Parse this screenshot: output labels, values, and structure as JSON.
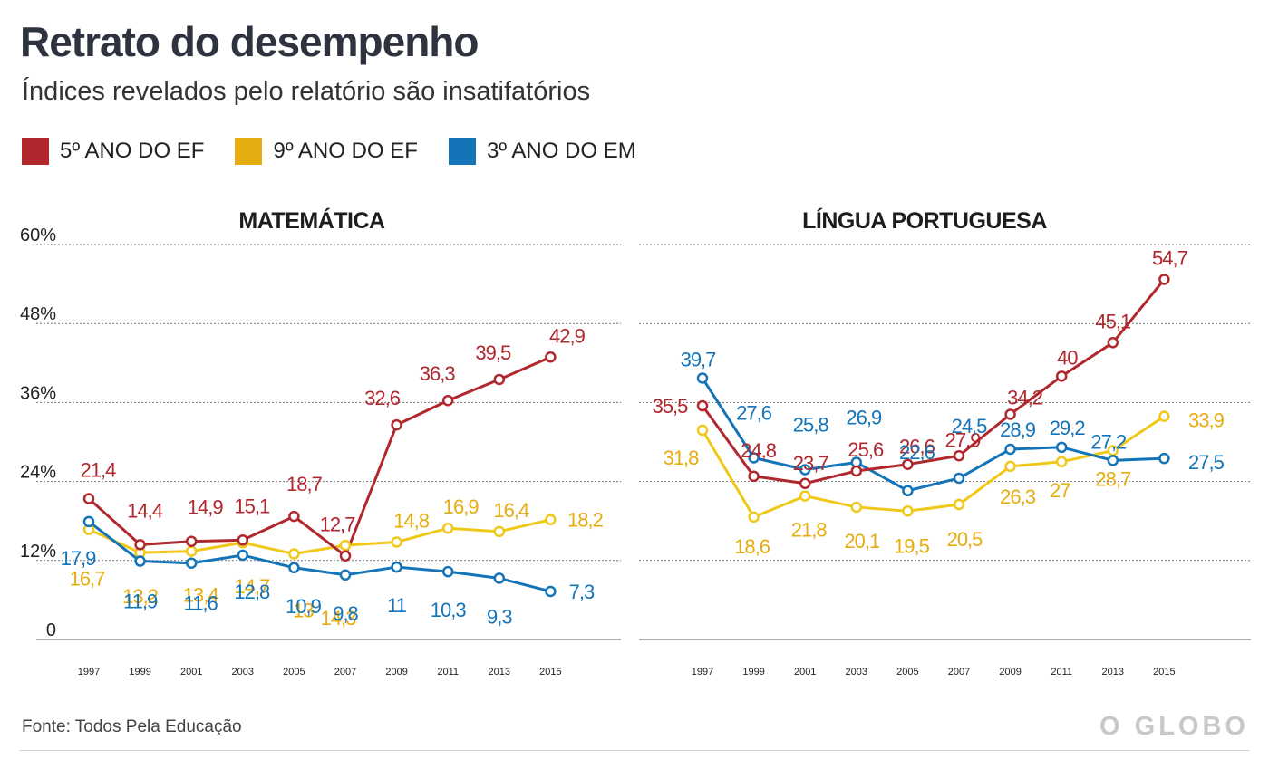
{
  "header": {
    "title": "Retrato do desempenho",
    "subtitle": "Índices revelados pelo relatório são insatifatórios"
  },
  "legend": [
    {
      "label": "5º ANO DO EF",
      "color": "#b0282e"
    },
    {
      "label": "9º ANO DO EF",
      "color": "#e6ad10"
    },
    {
      "label": "3º ANO DO EM",
      "color": "#1474b8"
    }
  ],
  "footer": {
    "source": "Fonte: Todos Pela Educação",
    "brand": "O GLOBO"
  },
  "colors": {
    "5ef": "#b0282e",
    "9ef_line": "#f0c81a",
    "9ef_label": "#e6ad10",
    "3em": "#1474b8",
    "grid": "#777777"
  },
  "chart_data": [
    {
      "type": "line",
      "title": "MATEMÁTICA",
      "x": [
        "1997",
        "1999",
        "2001",
        "2003",
        "2005",
        "2007",
        "2009",
        "2011",
        "2013",
        "2015"
      ],
      "ylim": [
        0,
        60
      ],
      "yticks": [
        "0",
        "12%",
        "24%",
        "36%",
        "48%",
        "60%"
      ],
      "grid": true,
      "series": [
        {
          "name": "5º ANO DO EF",
          "values": [
            21.4,
            14.4,
            14.9,
            15.1,
            18.7,
            12.7,
            32.6,
            36.3,
            39.5,
            42.9
          ],
          "labels": [
            "21,4",
            "14,4",
            "14,9",
            "15,1",
            "18,7",
            "12,7",
            "32,6",
            "36,3",
            "39,5",
            "42,9"
          ]
        },
        {
          "name": "9º ANO DO EF",
          "values": [
            16.7,
            13.2,
            13.4,
            14.7,
            13.0,
            14.3,
            14.8,
            16.9,
            16.4,
            18.2
          ],
          "labels": [
            "16,7",
            "13,2",
            "13,4",
            "14,7",
            "13",
            "14,3",
            "14,8",
            "16,9",
            "16,4",
            "18,2"
          ]
        },
        {
          "name": "3º ANO DO EM",
          "values": [
            17.9,
            11.9,
            11.6,
            12.8,
            10.9,
            9.8,
            11.0,
            10.3,
            9.3,
            7.3
          ],
          "labels": [
            "17,9",
            "11,9",
            "11,6",
            "12,8",
            "10,9",
            "9,8",
            "11",
            "10,3",
            "9,3",
            "7,3"
          ]
        }
      ]
    },
    {
      "type": "line",
      "title": "LÍNGUA PORTUGUESA",
      "x": [
        "1997",
        "1999",
        "2001",
        "2003",
        "2005",
        "2007",
        "2009",
        "2011",
        "2013",
        "2015"
      ],
      "ylim": [
        0,
        60
      ],
      "grid": true,
      "series": [
        {
          "name": "5º ANO DO EF",
          "values": [
            35.5,
            24.8,
            23.7,
            25.6,
            26.6,
            27.9,
            34.2,
            40.0,
            45.1,
            54.7
          ],
          "labels": [
            "35,5",
            "24,8",
            "23,7",
            "25,6",
            "26,6",
            "27,9",
            "34,2",
            "40",
            "45,1",
            "54,7"
          ]
        },
        {
          "name": "9º ANO DO EF",
          "values": [
            31.8,
            18.6,
            21.8,
            20.1,
            19.5,
            20.5,
            26.3,
            27.0,
            28.7,
            33.9
          ],
          "labels": [
            "31,8",
            "18,6",
            "21,8",
            "20,1",
            "19,5",
            "20,5",
            "26,3",
            "27",
            "28,7",
            "33,9"
          ]
        },
        {
          "name": "3º ANO DO EM",
          "values": [
            39.7,
            27.6,
            25.8,
            26.9,
            22.6,
            24.5,
            28.9,
            29.2,
            27.2,
            27.5
          ],
          "labels": [
            "39,7",
            "27,6",
            "25,8",
            "26,9",
            "22,6",
            "24,5",
            "28,9",
            "29,2",
            "27,2",
            "27,5"
          ]
        }
      ]
    }
  ]
}
